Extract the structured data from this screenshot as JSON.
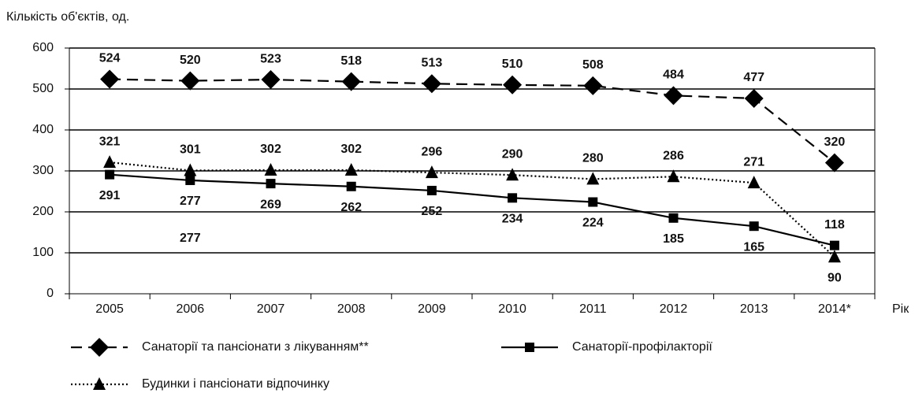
{
  "chart_data": {
    "type": "line",
    "y_axis_label": "Кількість об'єктів, од.",
    "x_axis_label": "Рік",
    "categories": [
      "2005",
      "2006",
      "2007",
      "2008",
      "2009",
      "2010",
      "2011",
      "2012",
      "2013",
      "2014*"
    ],
    "series": [
      {
        "name": "Санаторії та пансіонати з лікуванням**",
        "color": "#000000",
        "style": "dashed",
        "marker": "diamond",
        "values": [
          524,
          520,
          523,
          518,
          513,
          510,
          508,
          484,
          477,
          320
        ]
      },
      {
        "name": "Санаторії-профілакторії",
        "color": "#000000",
        "style": "solid",
        "marker": "square",
        "values": [
          291,
          277,
          269,
          262,
          252,
          234,
          224,
          185,
          165,
          118
        ]
      },
      {
        "name": "Будинки і пансіонати відпочинку",
        "color": "#000000",
        "style": "dotted",
        "marker": "triangle",
        "values": [
          321,
          301,
          302,
          302,
          296,
          290,
          280,
          286,
          271,
          90
        ]
      }
    ],
    "annotations": [
      "277"
    ],
    "ylim": [
      0,
      600
    ],
    "yticks": [
      0,
      100,
      200,
      300,
      400,
      500,
      600
    ],
    "grid": true
  }
}
